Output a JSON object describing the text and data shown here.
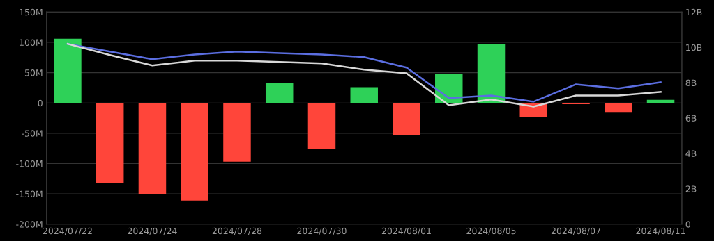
{
  "chart_data": {
    "type": "bar",
    "categories": [
      "2024/07/22",
      null,
      "2024/07/24",
      null,
      "2024/07/28",
      null,
      "2024/07/30",
      null,
      "2024/08/01",
      null,
      "2024/08/05",
      null,
      "2024/08/07",
      null,
      "2024/08/11"
    ],
    "series": [
      {
        "values": [
          106,
          -132,
          -150,
          -161,
          -97,
          33,
          -76,
          26,
          -53,
          48,
          97,
          -23,
          -2,
          -15,
          5
        ],
        "colors": [
          "#2ed158",
          "#ff453a",
          "#ff453a",
          "#ff453a",
          "#ff453a",
          "#2ed158",
          "#ff453a",
          "#2ed158",
          "#ff453a",
          "#2ed158",
          "#2ed158",
          "#ff453a",
          "#ff453a",
          "#ff453a",
          "#2ed158"
        ]
      },
      {
        "type": "line",
        "axis": "y2",
        "color": "#5b6ee1",
        "values": [
          10.2,
          9.76,
          9.33,
          9.6,
          9.76,
          9.68,
          9.6,
          9.45,
          8.86,
          7.13,
          7.28,
          6.93,
          7.91,
          7.68,
          8.03
        ]
      },
      {
        "type": "line",
        "axis": "y2",
        "color": "#d8d8d8",
        "values": [
          10.2,
          9.57,
          8.98,
          9.25,
          9.25,
          9.17,
          9.1,
          8.74,
          8.54,
          6.73,
          7.05,
          6.65,
          7.28,
          7.28,
          7.48
        ]
      }
    ],
    "ylim": [
      -200,
      150
    ],
    "yticks": [
      {
        "value": -200,
        "label": "-200M"
      },
      {
        "value": -150,
        "label": "-150M"
      },
      {
        "value": -100,
        "label": "-100M"
      },
      {
        "value": -50,
        "label": "-50M"
      },
      {
        "value": 0,
        "label": "0"
      },
      {
        "value": 50,
        "label": "50M"
      },
      {
        "value": 100,
        "label": "100M"
      },
      {
        "value": 150,
        "label": "150M"
      }
    ],
    "y2lim": [
      0,
      12
    ],
    "y2ticks": [
      0,
      {
        "value": 2,
        "label": "2B"
      },
      {
        "value": 4,
        "label": "4B"
      },
      {
        "value": 6,
        "label": "6B"
      },
      {
        "value": 8,
        "label": "8B"
      },
      {
        "value": 10,
        "label": "10B"
      },
      {
        "value": 12,
        "label": "12B"
      }
    ],
    "grid": "y"
  }
}
